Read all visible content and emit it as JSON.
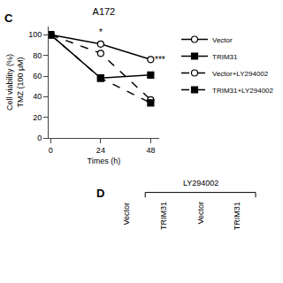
{
  "chart_data": {
    "type": "line",
    "title": "A172",
    "x_label": "Times (h)",
    "y_label": "Cell viability (%)\nTMZ (100 μM)",
    "x": [
      0,
      24,
      48
    ],
    "xlim": [
      -1,
      52
    ],
    "xticks": [
      0,
      24,
      48
    ],
    "ylim": [
      0,
      108
    ],
    "yticks": [
      0,
      20,
      40,
      60,
      80,
      100
    ],
    "grid": false,
    "legend": "upper right",
    "series": [
      {
        "name": "Vector",
        "values": [
          100,
          91,
          76
        ],
        "errors": [
          1.0,
          2.0,
          1.5
        ],
        "color": "#000000",
        "line_style": "solid",
        "marker": "circle-open"
      },
      {
        "name": "TRIM31",
        "values": [
          100,
          58,
          61
        ],
        "errors": [
          1.0,
          2.5,
          2.0
        ],
        "color": "#000000",
        "line_style": "solid",
        "marker": "square"
      },
      {
        "name": "Vector+LY294002",
        "values": [
          100,
          82,
          37
        ],
        "errors": [
          1.0,
          2.0,
          2.0
        ],
        "color": "#000000",
        "line_style": "dashed",
        "marker": "circle-open"
      },
      {
        "name": "TRIM31+LY294002",
        "values": [
          100,
          58,
          34
        ],
        "errors": [
          1.0,
          2.5,
          2.0
        ],
        "color": "#000000",
        "line_style": "dashed",
        "marker": "square"
      }
    ],
    "annotations": [
      {
        "text": "*",
        "x": 24,
        "y": 96
      },
      {
        "text": "***",
        "x": 49,
        "y": 76
      }
    ],
    "panel_labels": [
      "C",
      "D"
    ],
    "bracket_label": "LY294002",
    "column_labels": [
      "Vector",
      "TRIM31",
      "Vector",
      "TRIM31"
    ]
  }
}
